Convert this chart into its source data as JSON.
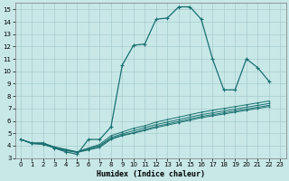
{
  "xlabel": "Humidex (Indice chaleur)",
  "background_color": "#c8e8e8",
  "line_color": "#1a7070",
  "grid_color": "#a8cccc",
  "xlim": [
    -0.5,
    23.5
  ],
  "ylim": [
    3,
    15.5
  ],
  "xticks": [
    0,
    1,
    2,
    3,
    4,
    5,
    6,
    7,
    8,
    9,
    10,
    11,
    12,
    13,
    14,
    15,
    16,
    17,
    18,
    19,
    20,
    21,
    22,
    23
  ],
  "yticks": [
    3,
    4,
    5,
    6,
    7,
    8,
    9,
    10,
    11,
    12,
    13,
    14,
    15
  ],
  "main_x": [
    0,
    1,
    2,
    3,
    4,
    5,
    6,
    7,
    8,
    9,
    10,
    11,
    12,
    13,
    14,
    15,
    16,
    17,
    18,
    19,
    20,
    21,
    22
  ],
  "main_y": [
    4.5,
    4.2,
    4.2,
    3.8,
    3.5,
    3.3,
    4.5,
    4.5,
    5.5,
    10.5,
    12.1,
    12.2,
    14.2,
    14.3,
    15.2,
    15.2,
    14.2,
    11.0,
    8.5,
    8.5,
    11.0,
    10.3,
    9.2
  ],
  "flat_lines": [
    {
      "x": [
        0,
        1,
        2,
        3,
        4,
        5,
        6,
        7,
        8,
        9,
        10,
        11,
        12,
        13,
        14,
        15,
        16,
        17,
        18,
        19,
        20,
        21,
        22
      ],
      "y": [
        4.5,
        4.2,
        4.2,
        3.9,
        3.7,
        3.5,
        3.8,
        4.1,
        4.8,
        5.1,
        5.4,
        5.6,
        5.9,
        6.1,
        6.3,
        6.5,
        6.7,
        6.85,
        7.0,
        7.15,
        7.3,
        7.45,
        7.6
      ]
    },
    {
      "x": [
        0,
        1,
        2,
        3,
        4,
        5,
        6,
        7,
        8,
        9,
        10,
        11,
        12,
        13,
        14,
        15,
        16,
        17,
        18,
        19,
        20,
        21,
        22
      ],
      "y": [
        4.5,
        4.2,
        4.1,
        3.85,
        3.65,
        3.5,
        3.75,
        4.0,
        4.65,
        4.95,
        5.2,
        5.45,
        5.7,
        5.9,
        6.1,
        6.3,
        6.5,
        6.65,
        6.8,
        6.95,
        7.1,
        7.25,
        7.4
      ]
    },
    {
      "x": [
        0,
        1,
        2,
        3,
        4,
        5,
        6,
        7,
        8,
        9,
        10,
        11,
        12,
        13,
        14,
        15,
        16,
        17,
        18,
        19,
        20,
        21,
        22
      ],
      "y": [
        4.5,
        4.15,
        4.1,
        3.8,
        3.6,
        3.45,
        3.7,
        3.95,
        4.55,
        4.85,
        5.05,
        5.3,
        5.55,
        5.75,
        5.95,
        6.15,
        6.35,
        6.5,
        6.65,
        6.8,
        6.95,
        7.1,
        7.25
      ]
    },
    {
      "x": [
        0,
        1,
        2,
        3,
        4,
        5,
        6,
        7,
        8,
        9,
        10,
        11,
        12,
        13,
        14,
        15,
        16,
        17,
        18,
        19,
        20,
        21,
        22
      ],
      "y": [
        4.5,
        4.2,
        4.2,
        3.85,
        3.65,
        3.45,
        3.65,
        3.85,
        4.5,
        4.8,
        5.0,
        5.22,
        5.45,
        5.65,
        5.85,
        6.05,
        6.25,
        6.4,
        6.55,
        6.7,
        6.85,
        7.0,
        7.15
      ]
    }
  ]
}
